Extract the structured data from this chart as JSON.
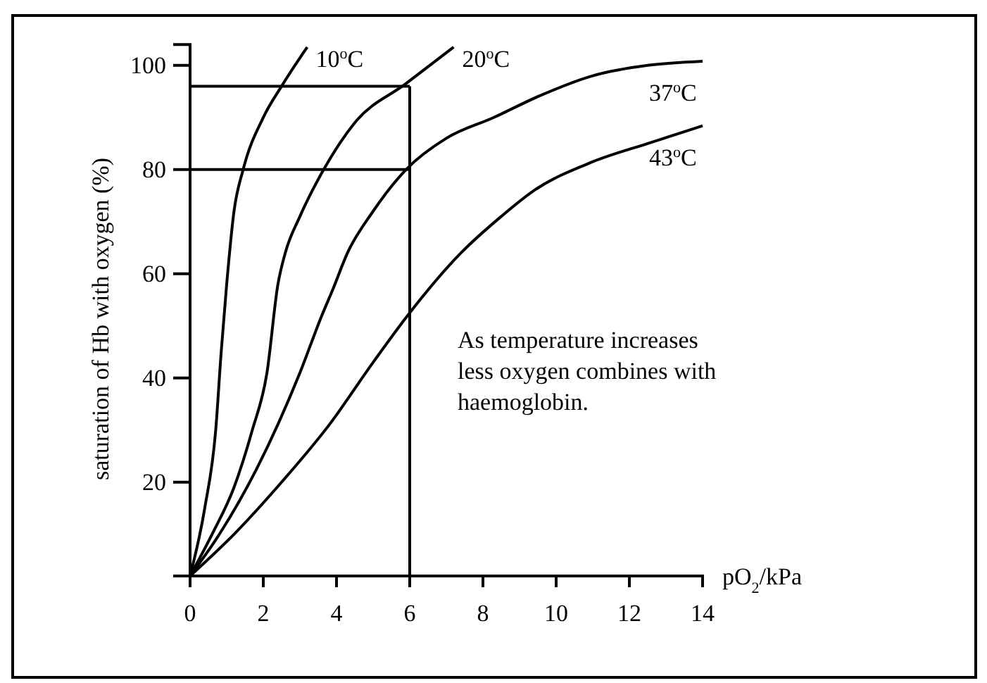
{
  "chart_data": {
    "type": "line",
    "xlabel": "pO$_{2}$/kPa",
    "ylabel": "saturation of Hb with oxygen  (%)",
    "xlim": [
      0,
      14
    ],
    "ylim": [
      2,
      104
    ],
    "xticks": [
      0,
      2,
      4,
      6,
      8,
      10,
      12,
      14
    ],
    "yticks": [
      20,
      40,
      60,
      80,
      100
    ],
    "grid": false,
    "marker": "none",
    "line_style": "solid",
    "series": [
      {
        "name": "10$^{o}$C",
        "color": "#000000",
        "x": [
          0,
          0.4,
          0.7,
          0.85,
          1.0,
          1.2,
          1.45,
          2,
          2.5,
          3.2
        ],
        "values": [
          2,
          15,
          30,
          45,
          58,
          72,
          80,
          90,
          96,
          103.5
        ]
      },
      {
        "name": "20$^{o}$C",
        "color": "#000000",
        "x": [
          0,
          0.6,
          1.2,
          1.7,
          2.1,
          2.4,
          2.6,
          3.0,
          3.65,
          4.5,
          5.9,
          7.2
        ],
        "values": [
          2,
          10,
          19,
          30,
          41,
          58,
          64,
          71,
          80,
          89,
          96.5,
          103.5
        ]
      },
      {
        "name": "37$^{o}$C",
        "color": "#000000",
        "x": [
          0,
          0.8,
          1.85,
          3.0,
          3.6,
          3.9,
          4.3,
          5.0,
          5.9,
          7,
          8.3,
          9.5,
          11,
          12.5,
          14
        ],
        "values": [
          2,
          10,
          23,
          41,
          52,
          57,
          64,
          72,
          80,
          86,
          90,
          94,
          98,
          100,
          100.8
        ]
      },
      {
        "name": "43$^{o}$C",
        "color": "#000000",
        "x": [
          0,
          1.2,
          2.5,
          3.8,
          5,
          5.9,
          7.4,
          8.5,
          9.4,
          11,
          12.5,
          14
        ],
        "values": [
          2,
          10,
          20,
          31,
          43,
          51.6,
          64,
          71,
          76,
          81.5,
          85,
          88.4
        ]
      }
    ],
    "ref_lines": [
      {
        "axis": "y",
        "value": 96,
        "color": "#000000"
      },
      {
        "axis": "y",
        "value": 80,
        "color": "#000000"
      },
      {
        "axis": "x",
        "value": 6,
        "color": "#000000"
      }
    ],
    "annotations": [
      "As temperature increases less oxygen combines with haemoglobin."
    ]
  }
}
